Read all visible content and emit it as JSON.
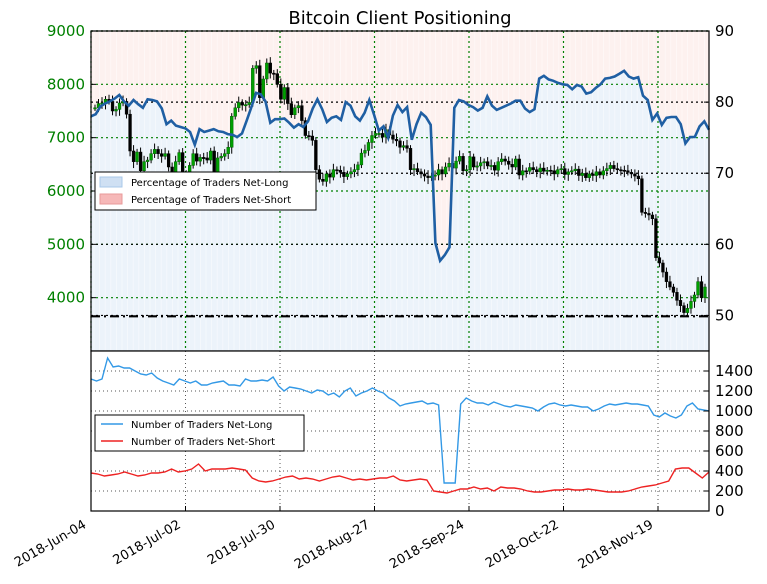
{
  "chart_data": [
    {
      "type": "candlestick",
      "title": "Bitcoin Client Positioning",
      "x_tick_labels": [
        "2018-Jun-04",
        "2018-Jul-02",
        "2018-Jul-30",
        "2018-Aug-27",
        "2018-Sep-24",
        "2018-Oct-22",
        "2018-Nov-19"
      ],
      "y_left": {
        "lim": [
          3000,
          9000
        ],
        "ticks": [
          4000,
          5000,
          6000,
          7000,
          8000,
          9000
        ],
        "color": "#008000"
      },
      "y_right": {
        "lim": [
          45,
          90
        ],
        "ticks": [
          50,
          60,
          70,
          80,
          90
        ]
      },
      "grid": true,
      "legend": {
        "position": "left",
        "entries": [
          "Percentage of Traders Net-Long",
          "Percentage of Traders Net-Short"
        ]
      },
      "reference_line_price": 3650,
      "candles_close": [
        7560,
        7640,
        7650,
        7720,
        7680,
        7500,
        7530,
        7650,
        7680,
        7440,
        6750,
        6550,
        6730,
        6380,
        6550,
        6580,
        6700,
        6780,
        6700,
        6650,
        6700,
        6450,
        6220,
        6550,
        6720,
        6200,
        6280,
        6480,
        6700,
        6560,
        6630,
        6620,
        6580,
        6750,
        6260,
        6620,
        6650,
        6700,
        6820,
        7400,
        7560,
        7660,
        7610,
        7620,
        7660,
        8300,
        8350,
        7750,
        8100,
        8400,
        8210,
        8200,
        8000,
        7720,
        7940,
        7640,
        7430,
        7560,
        7600,
        7320,
        7040,
        7030,
        6950,
        6400,
        6220,
        6180,
        6320,
        6260,
        6400,
        6390,
        6350,
        6270,
        6320,
        6360,
        6400,
        6490,
        6710,
        6760,
        6910,
        7040,
        7080,
        7080,
        7010,
        7150,
        7050,
        6970,
        6940,
        6820,
        6850,
        6800,
        6400,
        6420,
        6360,
        6320,
        6280,
        6250,
        6280,
        6300,
        6400,
        6320,
        6450,
        6520,
        6430,
        6560,
        6650,
        6380,
        6400,
        6640,
        6450,
        6470,
        6530,
        6550,
        6470,
        6480,
        6390,
        6550,
        6600,
        6560,
        6500,
        6450,
        6600,
        6300,
        6380,
        6370,
        6440,
        6400,
        6360,
        6430,
        6370,
        6390,
        6380,
        6320,
        6400,
        6420,
        6310,
        6360,
        6380,
        6410,
        6290,
        6330,
        6250,
        6320,
        6290,
        6360,
        6300,
        6380,
        6420,
        6480,
        6420,
        6400,
        6390,
        6380,
        6350,
        6320,
        6280,
        6230,
        5600,
        5580,
        5550,
        5480,
        4750,
        4650,
        4480,
        4300,
        4200,
        4100,
        3950,
        3850,
        3720,
        3800,
        3930,
        4050,
        4300,
        4000,
        4200
      ],
      "series": [
        {
          "name": "Percentage of Traders Net-Long",
          "axis": "right",
          "color": "#1f5fa3",
          "values": [
            78,
            78.3,
            79.4,
            79.8,
            80.1,
            80.5,
            81,
            80.1,
            79.5,
            80.3,
            79.7,
            79.2,
            80.4,
            80.3,
            80.1,
            79.1,
            76.9,
            77.4,
            76.7,
            76.5,
            76.3,
            75.8,
            74,
            76.2,
            75.8,
            76,
            76.2,
            75.9,
            75.8,
            75.5,
            75.4,
            75.1,
            75.6,
            77.4,
            79.3,
            81.3,
            81.1,
            80.1,
            77.1,
            77.6,
            77.6,
            77.7,
            77.1,
            76.4,
            76.9,
            76.5,
            77.3,
            79.1,
            80.4,
            79,
            77.2,
            77.8,
            78,
            77.5,
            80,
            79.5,
            78,
            77.4,
            78.5,
            80.3,
            78.2,
            76,
            76.6,
            75,
            78.1,
            79.6,
            78.6,
            79.3,
            74.7,
            76.9,
            78.5,
            77.9,
            76.8,
            60.2,
            57.7,
            58.5,
            59.6,
            79.2,
            80.3,
            80.1,
            79.6,
            79.3,
            78.8,
            79.2,
            80.8,
            79.5,
            78.9,
            79.2,
            79.5,
            79.8,
            80.2,
            80.2,
            79.1,
            78.6,
            79,
            83.3,
            83.7,
            83.2,
            83,
            82.7,
            82.5,
            82.4,
            81.8,
            82.4,
            82.2,
            81.2,
            81.4,
            82,
            82.5,
            83.3,
            83.4,
            83.6,
            84,
            84.4,
            83.6,
            83.3,
            83.5,
            80.9,
            80.3,
            77.5,
            78.4,
            76.8,
            77.8,
            77.9,
            77.9,
            76.9,
            74.2,
            75.1,
            75.1,
            76.6,
            77.3,
            76.1
          ]
        },
        {
          "name": "Percentage of Traders Net-Short",
          "axis": "right",
          "color": "#e8a0a0",
          "values": []
        }
      ]
    },
    {
      "type": "line",
      "y_lim": [
        0,
        1600
      ],
      "y_ticks": [
        0,
        200,
        400,
        600,
        800,
        1000,
        1200,
        1400
      ],
      "grid": true,
      "legend": {
        "position": "left",
        "entries": [
          "Number of Traders Net-Long",
          "Number of Traders Net-Short"
        ]
      },
      "series": [
        {
          "name": "Number of Traders Net-Long",
          "color": "#3399e6",
          "values": [
            1320,
            1300,
            1320,
            1530,
            1440,
            1450,
            1430,
            1430,
            1400,
            1370,
            1360,
            1380,
            1330,
            1300,
            1280,
            1260,
            1320,
            1300,
            1280,
            1300,
            1260,
            1260,
            1280,
            1290,
            1300,
            1260,
            1260,
            1250,
            1320,
            1300,
            1300,
            1310,
            1300,
            1340,
            1250,
            1200,
            1240,
            1230,
            1220,
            1200,
            1180,
            1210,
            1200,
            1160,
            1180,
            1140,
            1200,
            1230,
            1150,
            1180,
            1200,
            1230,
            1200,
            1180,
            1130,
            1100,
            1050,
            1070,
            1080,
            1090,
            1100,
            1070,
            1080,
            1060,
            280,
            280,
            280,
            1070,
            1130,
            1100,
            1080,
            1080,
            1060,
            1090,
            1070,
            1050,
            1040,
            1060,
            1050,
            1040,
            1030,
            1000,
            1040,
            1070,
            1080,
            1060,
            1050,
            1060,
            1050,
            1040,
            1040,
            1000,
            1020,
            1050,
            1070,
            1060,
            1070,
            1080,
            1070,
            1070,
            1060,
            1050,
            960,
            940,
            980,
            950,
            930,
            960,
            1050,
            1080,
            1020,
            1010,
            1000
          ]
        },
        {
          "name": "Number of Traders Net-Short",
          "color": "#ee2222",
          "values": [
            380,
            370,
            350,
            360,
            370,
            390,
            370,
            350,
            360,
            380,
            380,
            390,
            420,
            390,
            400,
            420,
            470,
            400,
            420,
            420,
            420,
            430,
            420,
            410,
            330,
            300,
            290,
            300,
            320,
            340,
            350,
            320,
            330,
            320,
            300,
            320,
            340,
            350,
            330,
            310,
            320,
            310,
            320,
            330,
            330,
            350,
            310,
            300,
            310,
            320,
            310,
            200,
            190,
            180,
            200,
            220,
            220,
            240,
            220,
            230,
            200,
            240,
            230,
            230,
            220,
            200,
            190,
            190,
            200,
            210,
            210,
            220,
            210,
            210,
            220,
            210,
            200,
            190,
            190,
            190,
            200,
            220,
            240,
            250,
            260,
            280,
            300,
            420,
            430,
            430,
            380,
            330,
            390
          ]
        }
      ]
    }
  ]
}
